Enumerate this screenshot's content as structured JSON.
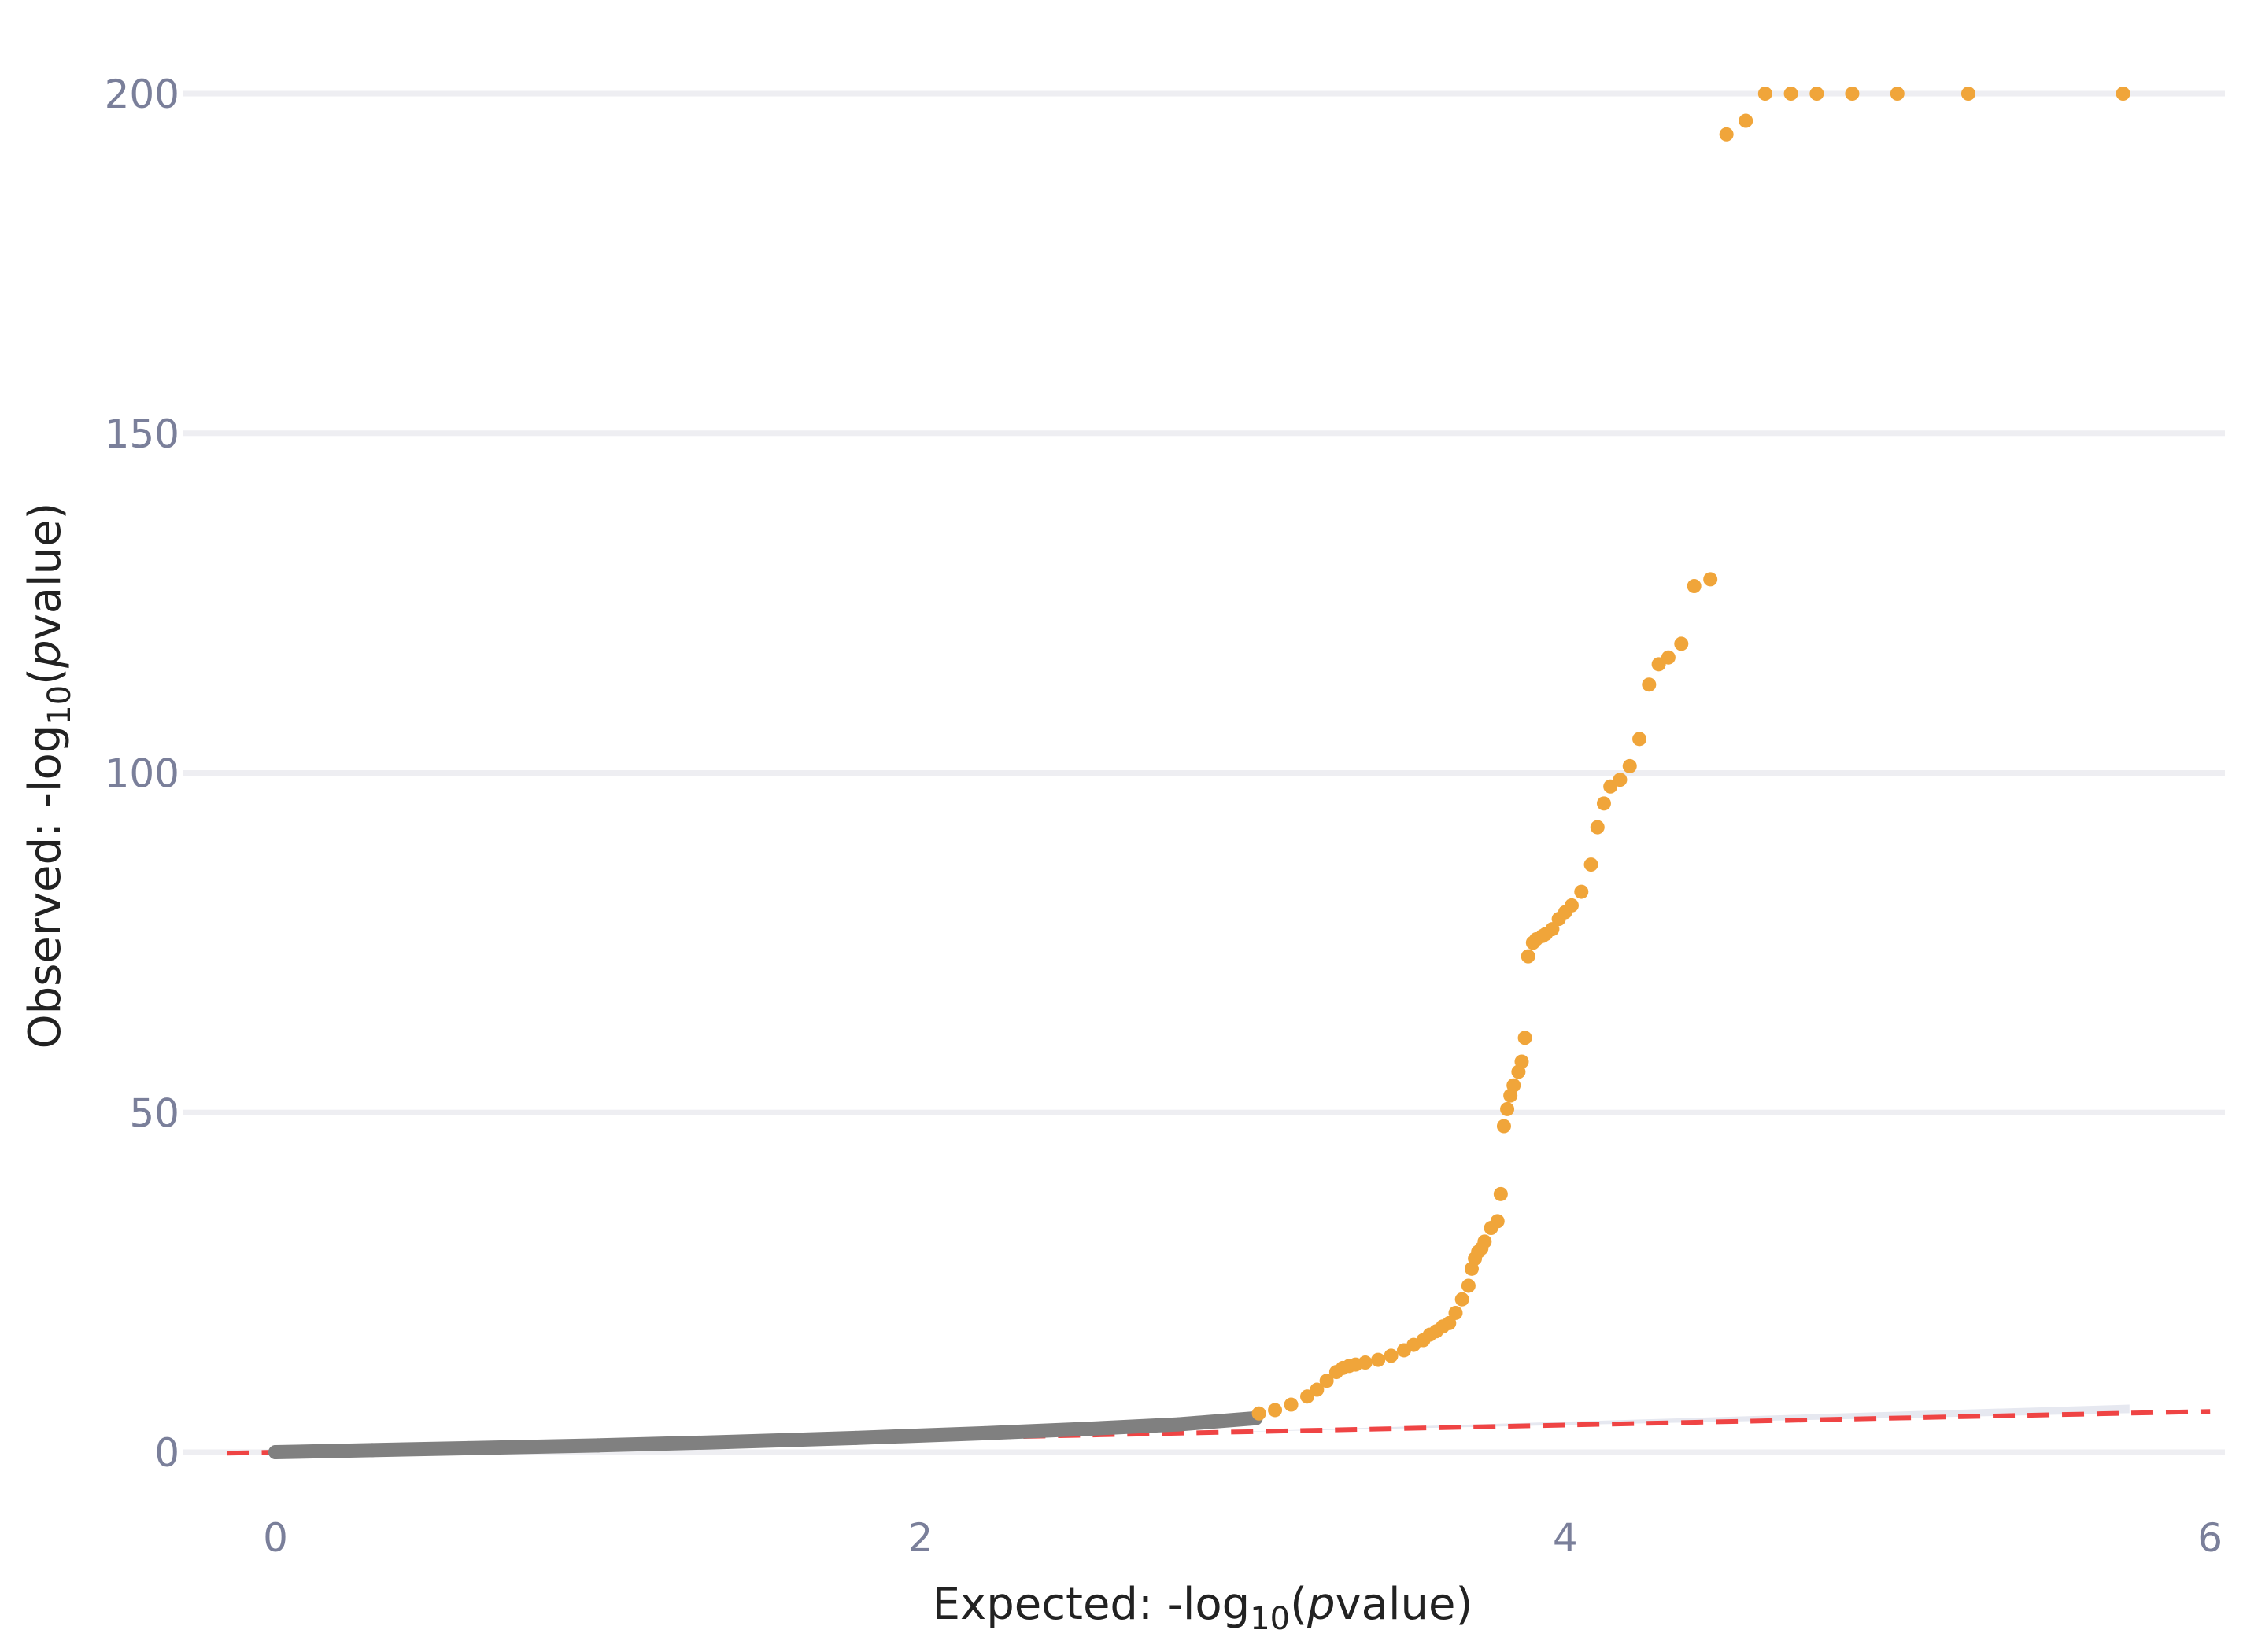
{
  "chart_data": {
    "type": "scatter",
    "title": "",
    "xlabel": {
      "prefix": "Expected: -log",
      "sub": "10",
      "open": "(",
      "italic": "p",
      "rest": "value)"
    },
    "ylabel": {
      "prefix": "Observed: -log",
      "sub": "10",
      "open": "(",
      "italic": "p",
      "rest": "value)"
    },
    "xlim": [
      -0.15,
      6.0
    ],
    "ylim": [
      -6,
      212
    ],
    "xticks": [
      0,
      2,
      4,
      6
    ],
    "xtick_labels": [
      "0",
      "2",
      "4",
      "6"
    ],
    "yticks": [
      0,
      50,
      100,
      150,
      200
    ],
    "ytick_labels": [
      "0",
      "50",
      "100",
      "150",
      "200"
    ],
    "grid": "horizontal",
    "legend": "none",
    "colors": {
      "background": "#ffffff",
      "non_significant": "#808080",
      "significant": "#f0a53a",
      "reference_line": "#ef4444",
      "confidence_band": "#e6e8f0",
      "grid": "#eeeef2",
      "tick_text": "#7a7f9a",
      "axis_title": "#222222"
    },
    "reference_line": {
      "style": "dashed",
      "x": [
        -0.15,
        6.0
      ],
      "y": [
        -0.15,
        6.0
      ]
    },
    "confidence_band": {
      "x": [
        3.0,
        5.75
      ],
      "lower": [
        3.0,
        5.75
      ],
      "upper": [
        3.05,
        7.0
      ]
    },
    "series": [
      {
        "color_key": "non_significant",
        "x": [
          0.0,
          0.3,
          0.6,
          1.0,
          1.4,
          1.8,
          2.2,
          2.5,
          2.8,
          3.04
        ],
        "y": [
          0.0,
          0.3,
          0.6,
          1.0,
          1.5,
          2.1,
          2.8,
          3.4,
          4.1,
          5.0
        ]
      },
      {
        "color_key": "significant",
        "x": [
          3.05,
          3.1,
          3.15,
          3.2,
          3.23,
          3.26,
          3.29,
          3.31,
          3.33,
          3.35,
          3.38,
          3.42,
          3.46,
          3.5,
          3.53,
          3.56,
          3.58,
          3.6,
          3.62,
          3.64,
          3.66,
          3.68,
          3.7,
          3.71,
          3.72,
          3.73,
          3.74,
          3.75,
          3.77,
          3.79,
          3.8,
          3.81,
          3.82,
          3.83,
          3.84,
          3.855,
          3.865,
          3.875,
          3.885,
          3.9,
          3.91,
          3.93,
          3.94,
          3.96,
          3.98,
          4.0,
          4.02,
          4.05,
          4.08,
          4.1,
          4.12,
          4.14,
          4.17,
          4.2,
          4.23,
          4.26,
          4.29,
          4.32,
          4.36,
          4.4,
          4.45,
          4.5,
          4.56,
          4.62,
          4.7,
          4.78,
          4.89,
          5.03,
          5.25,
          5.73
        ],
        "y": [
          5.7,
          6.2,
          7.0,
          8.2,
          9.2,
          10.5,
          11.8,
          12.4,
          12.7,
          12.9,
          13.2,
          13.6,
          14.2,
          15.0,
          15.8,
          16.5,
          17.3,
          17.8,
          18.5,
          19.0,
          20.5,
          22.5,
          24.5,
          27.0,
          28.5,
          29.5,
          30.0,
          31.0,
          33.0,
          34.0,
          38.0,
          48.0,
          50.5,
          52.5,
          54.0,
          56.0,
          57.5,
          61.0,
          73.0,
          75.0,
          75.5,
          76.0,
          76.3,
          77.0,
          78.5,
          79.5,
          80.5,
          82.5,
          86.5,
          92.0,
          95.5,
          98.0,
          99.0,
          101.0,
          105.0,
          113.0,
          116.0,
          117.0,
          119.0,
          127.5,
          128.5,
          194.0,
          196.0,
          200.0,
          200.0,
          200.0,
          200.0,
          200.0,
          200.0,
          200.0
        ]
      }
    ]
  }
}
